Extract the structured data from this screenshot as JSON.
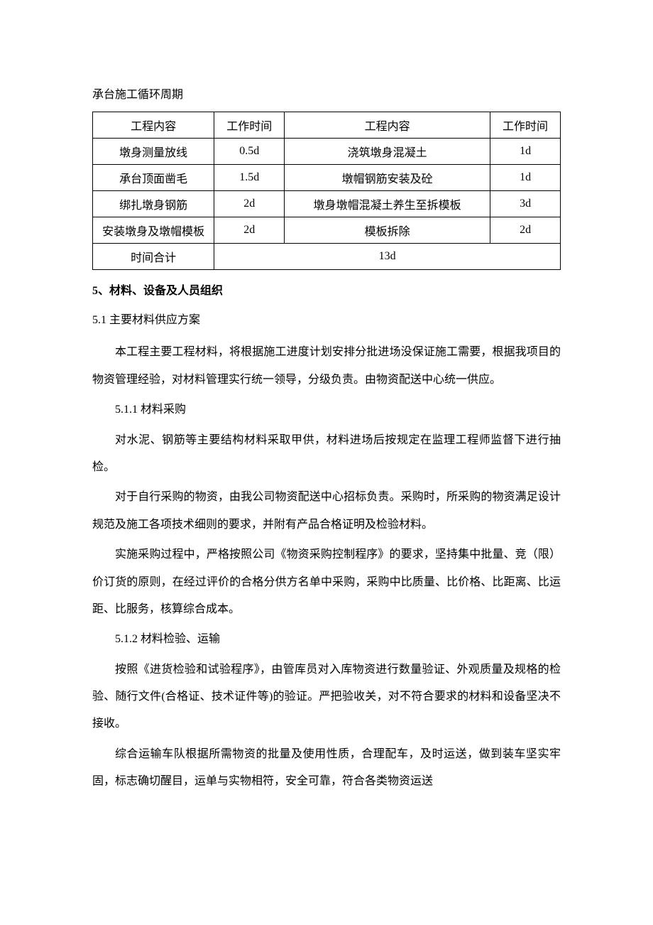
{
  "table": {
    "title": "承台施工循环周期",
    "header": {
      "c1": "工程内容",
      "c2": "工作时间",
      "c3": "工程内容",
      "c4": "工作时间"
    },
    "rows": [
      {
        "c1": "墩身测量放线",
        "c2": "0.5d",
        "c3": "浇筑墩身混凝土",
        "c4": "1d"
      },
      {
        "c1": "承台顶面凿毛",
        "c2": "1.5d",
        "c3": "墩帽钢筋安装及砼",
        "c4": "1d"
      },
      {
        "c1": "绑扎墩身钢筋",
        "c2": "2d",
        "c3": "墩身墩帽混凝土养生至拆模板",
        "c4": "3d"
      },
      {
        "c1": "安装墩身及墩帽模板",
        "c2": "2d",
        "c3": "模板拆除",
        "c4": "2d"
      }
    ],
    "total": {
      "label": "时间合计",
      "value": "13d"
    }
  },
  "sections": {
    "s5": {
      "heading": "5、材料、设备及人员组织",
      "s5_1": {
        "heading": "5.1 主要材料供应方案",
        "para1": "本工程主要工程材料，将根据施工进度计划安排分批进场没保证施工需要，根据我项目的物资管理经验，对材料管理实行统一领导，分级负责。由物资配送中心统一供应。",
        "s5_1_1": {
          "heading": "5.1.1 材料采购",
          "para1": "对水泥、钢筋等主要结构材料采取甲供，材料进场后按规定在监理工程师监督下进行抽检。",
          "para2": "对于自行采购的物资，由我公司物资配送中心招标负责。采购时，所采购的物资满足设计规范及施工各项技术细则的要求，并附有产品合格证明及检验材料。",
          "para3": "实施采购过程中，严格按照公司《物资采购控制程序》的要求，坚持集中批量、竞（限）价订货的原则，在经过评价的合格分供方名单中采购，采购中比质量、比价格、比距离、比运距、比服务，核算综合成本。"
        },
        "s5_1_2": {
          "heading": "5.1.2 材料检验、运输",
          "para1": "按照《进货检验和试验程序》，由管库员对入库物资进行数量验证、外观质量及规格的检验、随行文件(合格证、技术证件等)的验证。严把验收关，对不符合要求的材料和设备坚决不接收。",
          "para2": "综合运输车队根据所需物资的批量及使用性质，合理配车，及时运送，做到装车坚实牢固，标志确切醒目，运单与实物相符，安全可靠，符合各类物资运送"
        }
      }
    }
  }
}
